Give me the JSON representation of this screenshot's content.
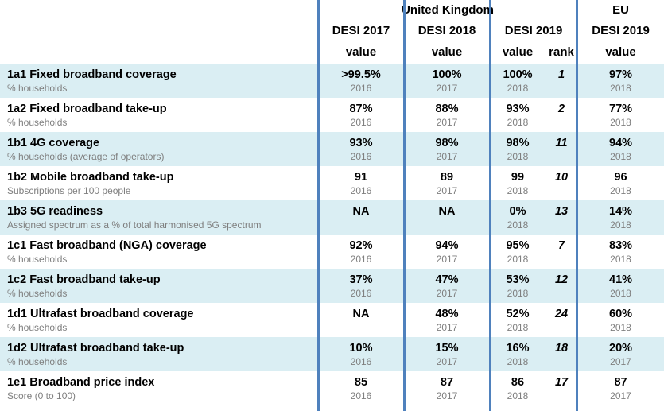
{
  "header": {
    "uk": "United Kingdom",
    "eu": "EU",
    "desi2017": "DESI 2017",
    "desi2018": "DESI 2018",
    "desi2019": "DESI 2019",
    "eu_desi2019": "DESI 2019",
    "value": "value",
    "rank": "rank"
  },
  "rows": [
    {
      "name": "1a1 Fixed broadband coverage",
      "unit": "% households",
      "d17": ">99.5%",
      "y17": "2016",
      "d18": "100%",
      "y18": "2017",
      "d19": "100%",
      "y19": "2018",
      "rank": "1",
      "eu": "97%",
      "yeu": "2018"
    },
    {
      "name": "1a2 Fixed broadband take-up",
      "unit": "% households",
      "d17": "87%",
      "y17": "2016",
      "d18": "88%",
      "y18": "2017",
      "d19": "93%",
      "y19": "2018",
      "rank": "2",
      "eu": "77%",
      "yeu": "2018"
    },
    {
      "name": "1b1 4G coverage",
      "unit": "% households (average of operators)",
      "d17": "93%",
      "y17": "2016",
      "d18": "98%",
      "y18": "2017",
      "d19": "98%",
      "y19": "2018",
      "rank": "11",
      "eu": "94%",
      "yeu": "2018"
    },
    {
      "name": "1b2 Mobile broadband take-up",
      "unit": "Subscriptions per 100 people",
      "d17": "91",
      "y17": "2016",
      "d18": "89",
      "y18": "2017",
      "d19": "99",
      "y19": "2018",
      "rank": "10",
      "eu": "96",
      "yeu": "2018"
    },
    {
      "name": "1b3 5G readiness",
      "unit": "Assigned spectrum as a % of total harmonised 5G spectrum",
      "d17": "NA",
      "y17": "",
      "d18": "NA",
      "y18": "",
      "d19": "0%",
      "y19": "2018",
      "rank": "13",
      "eu": "14%",
      "yeu": "2018"
    },
    {
      "name": "1c1 Fast broadband (NGA) coverage",
      "unit": "% households",
      "d17": "92%",
      "y17": "2016",
      "d18": "94%",
      "y18": "2017",
      "d19": "95%",
      "y19": "2018",
      "rank": "7",
      "eu": "83%",
      "yeu": "2018"
    },
    {
      "name": "1c2 Fast broadband take-up",
      "unit": "% households",
      "d17": "37%",
      "y17": "2016",
      "d18": "47%",
      "y18": "2017",
      "d19": "53%",
      "y19": "2018",
      "rank": "12",
      "eu": "41%",
      "yeu": "2018"
    },
    {
      "name": "1d1 Ultrafast broadband coverage",
      "unit": "% households",
      "d17": "NA",
      "y17": "",
      "d18": "48%",
      "y18": "2017",
      "d19": "52%",
      "y19": "2018",
      "rank": "24",
      "eu": "60%",
      "yeu": "2018"
    },
    {
      "name": "1d2 Ultrafast broadband take-up",
      "unit": "% households",
      "d17": "10%",
      "y17": "2016",
      "d18": "15%",
      "y18": "2017",
      "d19": "16%",
      "y19": "2018",
      "rank": "18",
      "eu": "20%",
      "yeu": "2017"
    },
    {
      "name": "1e1 Broadband price index",
      "unit": "Score (0 to 100)",
      "d17": "85",
      "y17": "2016",
      "d18": "87",
      "y18": "2017",
      "d19": "86",
      "y19": "2018",
      "rank": "17",
      "eu": "87",
      "yeu": "2017"
    }
  ]
}
